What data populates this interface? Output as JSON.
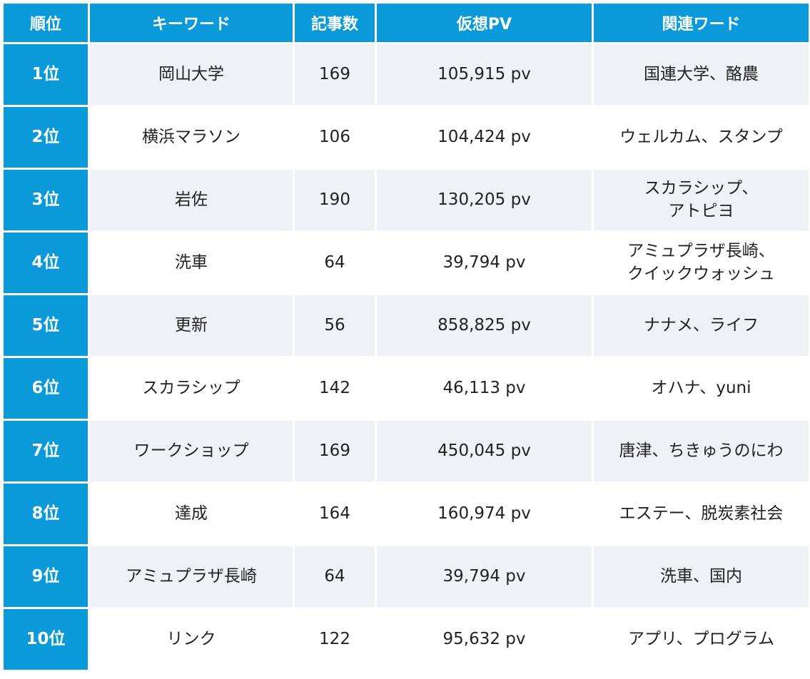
{
  "colors": {
    "header_bg": "#0a9ad9",
    "rank_bg": "#0a9ad9",
    "stripe_bg": "#f0f1f6",
    "text": "#222222"
  },
  "headers": {
    "rank": "順位",
    "keyword": "キーワード",
    "articles": "記事数",
    "pv": "仮想PV",
    "related": "関連ワード"
  },
  "rows": [
    {
      "rank": "1位",
      "keyword": "岡山大学",
      "articles": "169",
      "pv": "105,915 pv",
      "related": "国連大学、酪農"
    },
    {
      "rank": "2位",
      "keyword": "横浜マラソン",
      "articles": "106",
      "pv": "104,424 pv",
      "related": "ウェルカム、スタンプ"
    },
    {
      "rank": "3位",
      "keyword": "岩佐",
      "articles": "190",
      "pv": "130,205 pv",
      "related": "スカラシップ、\nアトピヨ"
    },
    {
      "rank": "4位",
      "keyword": "洗車",
      "articles": "64",
      "pv": "39,794 pv",
      "related": "アミュプラザ長崎、\nクイックウォッシュ"
    },
    {
      "rank": "5位",
      "keyword": "更新",
      "articles": "56",
      "pv": "858,825 pv",
      "related": "ナナメ、ライフ"
    },
    {
      "rank": "6位",
      "keyword": "スカラシップ",
      "articles": "142",
      "pv": "46,113 pv",
      "related": "オハナ、yuni"
    },
    {
      "rank": "7位",
      "keyword": "ワークショップ",
      "articles": "169",
      "pv": "450,045 pv",
      "related": "唐津、ちきゅうのにわ"
    },
    {
      "rank": "8位",
      "keyword": "達成",
      "articles": "164",
      "pv": "160,974 pv",
      "related": "エステー、脱炭素社会"
    },
    {
      "rank": "9位",
      "keyword": "アミュプラザ長崎",
      "articles": "64",
      "pv": "39,794 pv",
      "related": "洗車、国内"
    },
    {
      "rank": "10位",
      "keyword": "リンク",
      "articles": "122",
      "pv": "95,632 pv",
      "related": "アプリ、プログラム"
    }
  ]
}
